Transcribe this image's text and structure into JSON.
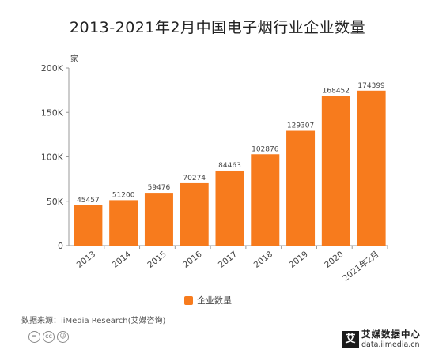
{
  "title": "2013-2021年2月中国电子烟行业企业数量",
  "chart_data": {
    "type": "bar",
    "title": "2013-2021年2月中国电子烟行业企业数量",
    "categories": [
      "2013",
      "2014",
      "2015",
      "2016",
      "2017",
      "2018",
      "2019",
      "2020",
      "2021年2月"
    ],
    "series": [
      {
        "name": "企业数量",
        "values": [
          45457,
          51200,
          59476,
          70274,
          84463,
          102876,
          129307,
          168452,
          174399
        ]
      }
    ],
    "ylabel": "家",
    "ylim": [
      0,
      200000
    ],
    "yticks": [
      0,
      50000,
      100000,
      150000,
      200000
    ],
    "ytick_labels": [
      "0",
      "50K",
      "100K",
      "150K",
      "200K"
    ],
    "grid": false,
    "legend": "bottom",
    "color": "#F77B1D"
  },
  "source": "数据来源：iiMedia Research(艾媒咨询)",
  "license_icons": [
    "equals-icon",
    "cc-icon",
    "person-icon"
  ],
  "brand": {
    "mark": "艾",
    "name": "艾媒数据中心",
    "url": "data.iimedia.cn"
  }
}
